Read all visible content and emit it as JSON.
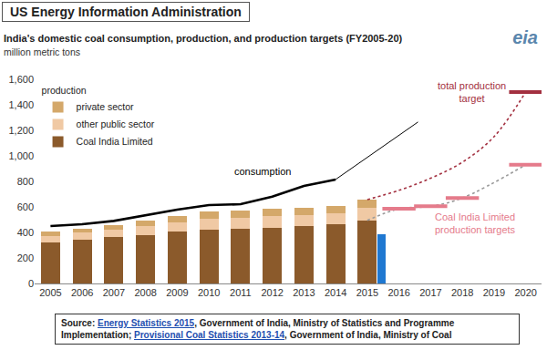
{
  "banner": "US Energy Information Administration",
  "logo": "eia",
  "chart_data": {
    "type": "bar",
    "stacked": true,
    "title": "India's domestic coal consumption, production, and production targets (FY2005-20)",
    "subtitle": "million metric tons",
    "legend_title": "production",
    "legend": "upper left",
    "grid": false,
    "x": [
      2005,
      2006,
      2007,
      2008,
      2009,
      2010,
      2011,
      2012,
      2013,
      2014,
      2015
    ],
    "xlim": [
      2004.5,
      2020.5
    ],
    "xticks": [
      2005,
      2006,
      2007,
      2008,
      2009,
      2010,
      2011,
      2012,
      2013,
      2014,
      2015,
      2016,
      2017,
      2018,
      2019,
      2020
    ],
    "ylim": [
      0,
      1600
    ],
    "yticks": [
      0,
      200,
      400,
      600,
      800,
      {
        "value": 1000,
        "label": "1,000"
      },
      {
        "value": 1200,
        "label": "1,200"
      },
      {
        "value": 1400,
        "label": "1,400"
      },
      {
        "value": 1600,
        "label": "1,600"
      }
    ],
    "series": [
      {
        "name": "Coal India Limited",
        "type": "bar",
        "color": "#8b5a2b",
        "values": [
          320,
          343,
          362,
          380,
          405,
          425,
          432,
          436,
          453,
          462,
          494
        ]
      },
      {
        "name": "other public sector",
        "type": "bar",
        "color": "#f0c9a4",
        "values": [
          55,
          58,
          60,
          68,
          75,
          80,
          82,
          90,
          85,
          87,
          100
        ]
      },
      {
        "name": "private sector",
        "type": "bar",
        "color": "#d4a86a",
        "values": [
          32,
          30,
          35,
          45,
          52,
          60,
          55,
          58,
          57,
          55,
          60
        ]
      },
      {
        "type": "bar",
        "color": "#1f78d1",
        "x": [
          2015.45
        ],
        "values": [
          385
        ]
      },
      {
        "type": "line",
        "line_style": "solid",
        "color": "#000000",
        "x": [
          2005,
          2006,
          2007,
          2008,
          2009,
          2010,
          2011,
          2012,
          2013,
          2014
        ],
        "values": [
          450,
          464,
          490,
          536,
          578,
          614,
          621,
          680,
          765,
          815
        ]
      },
      {
        "type": "line",
        "line_style": "thin",
        "color": "#000000",
        "x": [
          2014,
          2016.6
        ],
        "values": [
          815,
          1265
        ]
      },
      {
        "type": "line",
        "line_style": "dotted",
        "color": "#a33040",
        "x": [
          2015,
          2016,
          2017,
          2018,
          2019,
          2020
        ],
        "values": [
          657,
          730,
          825,
          950,
          1150,
          1500
        ]
      },
      {
        "type": "scatter",
        "marker": "dash",
        "color": "#a33040",
        "x": [
          2020
        ],
        "values": [
          1500
        ]
      },
      {
        "type": "line",
        "line_style": "dotted",
        "color": "#9a9a9a",
        "x": [
          2015,
          2016,
          2017,
          2018,
          2020
        ],
        "values": [
          494,
          585,
          605,
          670,
          930
        ]
      },
      {
        "type": "scatter",
        "marker": "dash",
        "color": "#e57b8b",
        "x": [
          2016,
          2017,
          2018,
          2020
        ],
        "values": [
          585,
          605,
          670,
          930
        ]
      }
    ],
    "annotations": [
      {
        "text": [
          "consumption"
        ],
        "color": "#000000"
      },
      {
        "text": [
          "total production",
          "target"
        ],
        "color": "#a33040"
      },
      {
        "text": [
          "Coal India Limited",
          "production targets"
        ],
        "color": "#e57b8b"
      }
    ]
  },
  "source": {
    "label": "Source:",
    "parts": [
      {
        "text": "Energy Statistics 2015",
        "link": true
      },
      {
        "text": ", Government of India, Ministry of Statistics and Programme Implementation; ",
        "link": false
      },
      {
        "text": "Provisional Coal Statistics 2013-14",
        "link": true
      },
      {
        "text": ", Government of India, Ministry of Coal",
        "link": false
      }
    ]
  }
}
